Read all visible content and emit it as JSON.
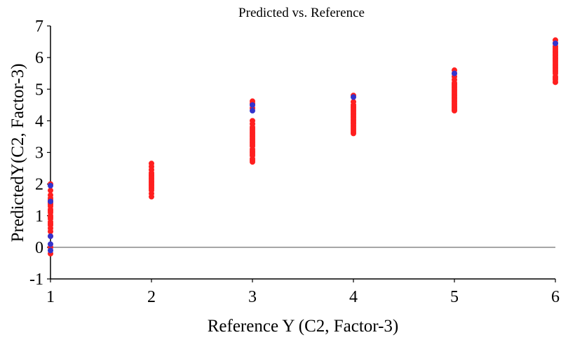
{
  "chart_data": {
    "type": "scatter",
    "title": "Predicted vs. Reference",
    "xlabel": "Reference Y (C2, Factor-3)",
    "ylabel": "PredictedY(C2, Factor-3)",
    "xlim": [
      1,
      6
    ],
    "ylim": [
      -1,
      7
    ],
    "xticks": [
      "1",
      "2",
      "3",
      "4",
      "5",
      "6"
    ],
    "yticks": [
      "-1",
      "0",
      "1",
      "2",
      "3",
      "4",
      "5",
      "6",
      "7"
    ],
    "grid": false,
    "legend": "none",
    "reference_line_y": 0,
    "colors": {
      "calibration": "#ff1f1f",
      "validation": "#3333cc",
      "zero_line": "#888888"
    },
    "series": [
      {
        "marker": "red-circle",
        "x": [
          1,
          1,
          1,
          1,
          1,
          1,
          1,
          1,
          1,
          1,
          1,
          1,
          1,
          1,
          1,
          1,
          1,
          1,
          1,
          1,
          1,
          1,
          1,
          2,
          2,
          2,
          2,
          2,
          2,
          2,
          2,
          2,
          2,
          2,
          2,
          2,
          2,
          2,
          2,
          2,
          3,
          3,
          3,
          3,
          3,
          3,
          3,
          3,
          3,
          3,
          3,
          3,
          3,
          3,
          3,
          3,
          3,
          3,
          3,
          3,
          3,
          3,
          3,
          3,
          3,
          3,
          4,
          4,
          4,
          4,
          4,
          4,
          4,
          4,
          4,
          4,
          4,
          4,
          4,
          4,
          4,
          4,
          4,
          4,
          4,
          4,
          4,
          5,
          5,
          5,
          5,
          5,
          5,
          5,
          5,
          5,
          5,
          5,
          5,
          5,
          5,
          5,
          5,
          5,
          5,
          5,
          5,
          5,
          5,
          5,
          6,
          6,
          6,
          6,
          6,
          6,
          6,
          6,
          6,
          6,
          6,
          6,
          6,
          6,
          6,
          6,
          6,
          6,
          6,
          6,
          6,
          6,
          6,
          6
        ],
        "y": [
          2.0,
          1.8,
          1.65,
          1.55,
          1.5,
          1.45,
          1.4,
          1.35,
          1.3,
          1.2,
          1.15,
          1.1,
          1.0,
          0.95,
          0.9,
          0.8,
          0.75,
          0.7,
          0.6,
          0.5,
          0.35,
          0.0,
          -0.2,
          2.65,
          2.55,
          2.45,
          2.35,
          2.3,
          2.25,
          2.2,
          2.15,
          2.1,
          2.05,
          2.0,
          1.95,
          1.9,
          1.85,
          1.8,
          1.7,
          1.6,
          4.62,
          4.55,
          4.4,
          4.0,
          3.9,
          3.8,
          3.75,
          3.7,
          3.65,
          3.6,
          3.55,
          3.5,
          3.45,
          3.4,
          3.35,
          3.3,
          3.25,
          3.2,
          3.1,
          3.05,
          3.0,
          2.95,
          2.9,
          2.8,
          2.75,
          2.7,
          4.8,
          4.6,
          4.5,
          4.45,
          4.4,
          4.35,
          4.3,
          4.25,
          4.2,
          4.15,
          4.1,
          4.05,
          4.0,
          3.95,
          3.9,
          3.85,
          3.8,
          3.75,
          3.7,
          3.65,
          3.6,
          5.6,
          5.5,
          5.4,
          5.3,
          5.2,
          5.15,
          5.1,
          5.05,
          5.0,
          4.95,
          4.9,
          4.85,
          4.8,
          4.75,
          4.7,
          4.65,
          4.6,
          4.55,
          4.5,
          4.45,
          4.4,
          4.35,
          4.32,
          6.55,
          6.45,
          6.35,
          6.3,
          6.25,
          6.2,
          6.15,
          6.1,
          6.05,
          6.0,
          5.95,
          5.9,
          5.85,
          5.8,
          5.75,
          5.7,
          5.65,
          5.6,
          5.55,
          5.5,
          5.4,
          5.35,
          5.3,
          5.22
        ]
      },
      {
        "marker": "blue-circle",
        "x": [
          1,
          1,
          1,
          1,
          1,
          3,
          3,
          4,
          5,
          6
        ],
        "y": [
          1.95,
          1.45,
          0.35,
          0.1,
          -0.1,
          4.5,
          4.32,
          4.75,
          5.5,
          6.45
        ]
      }
    ]
  }
}
